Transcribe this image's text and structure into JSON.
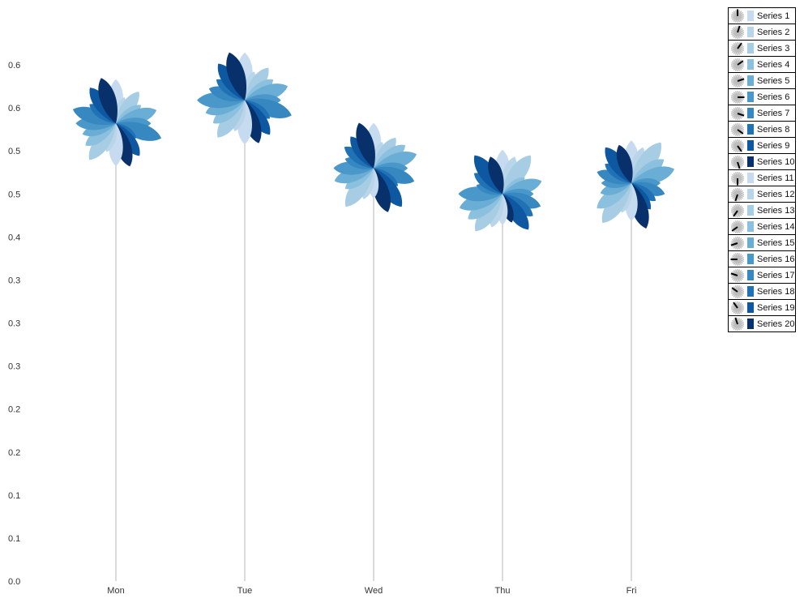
{
  "chart_data": {
    "type": "flower",
    "categories": [
      "Mon",
      "Tue",
      "Wed",
      "Thu",
      "Fri"
    ],
    "y_tick_labels": [
      "0.0",
      "0.1",
      "0.1",
      "0.2",
      "0.2",
      "0.3",
      "0.3",
      "0.3",
      "0.4",
      "0.5",
      "0.5",
      "0.6",
      "0.6"
    ],
    "ylim": [
      0,
      0.65
    ],
    "flower_centers": [
      0.552,
      0.58,
      0.498,
      0.467,
      0.48
    ],
    "series": [
      {
        "name": "Series 1",
        "color": "#c6dbef"
      },
      {
        "name": "Series 2",
        "color": "#b9d5ea"
      },
      {
        "name": "Series 3",
        "color": "#a6cde4"
      },
      {
        "name": "Series 4",
        "color": "#8cc0df"
      },
      {
        "name": "Series 5",
        "color": "#6aaed6"
      },
      {
        "name": "Series 6",
        "color": "#4a98c9"
      },
      {
        "name": "Series 7",
        "color": "#3787c0"
      },
      {
        "name": "Series 8",
        "color": "#2171b5"
      },
      {
        "name": "Series 9",
        "color": "#0d58a1"
      },
      {
        "name": "Series 10",
        "color": "#08306b"
      },
      {
        "name": "Series 11",
        "color": "#c6dbef"
      },
      {
        "name": "Series 12",
        "color": "#b9d5ea"
      },
      {
        "name": "Series 13",
        "color": "#a6cde4"
      },
      {
        "name": "Series 14",
        "color": "#8cc0df"
      },
      {
        "name": "Series 15",
        "color": "#6aaed6"
      },
      {
        "name": "Series 16",
        "color": "#4a98c9"
      },
      {
        "name": "Series 17",
        "color": "#3787c0"
      },
      {
        "name": "Series 18",
        "color": "#2171b5"
      },
      {
        "name": "Series 19",
        "color": "#0d58a1"
      },
      {
        "name": "Series 20",
        "color": "#08306b"
      }
    ],
    "petal_lengths": [
      [
        0.88,
        0.55,
        0.78,
        0.62,
        0.85,
        0.7,
        0.95,
        0.5,
        0.8,
        0.9,
        0.85,
        0.6,
        0.9,
        0.75,
        0.7,
        0.8,
        0.9,
        0.65,
        0.88,
        0.95
      ],
      [
        0.95,
        0.6,
        0.8,
        0.7,
        0.9,
        0.72,
        0.98,
        0.62,
        0.85,
        0.9,
        0.88,
        0.65,
        0.92,
        0.78,
        0.82,
        0.95,
        0.75,
        0.7,
        0.9,
        1.0
      ],
      [
        0.9,
        0.55,
        0.75,
        0.78,
        0.9,
        0.68,
        0.85,
        0.6,
        0.95,
        0.92,
        0.6,
        0.65,
        0.95,
        0.7,
        0.82,
        0.8,
        0.6,
        0.72,
        0.78,
        0.95
      ],
      [
        0.88,
        0.78,
        0.95,
        0.55,
        0.82,
        0.62,
        0.8,
        0.75,
        0.88,
        0.6,
        0.62,
        0.7,
        0.92,
        0.85,
        0.9,
        0.88,
        0.55,
        0.7,
        0.95,
        0.78
      ],
      [
        0.85,
        0.75,
        1.0,
        0.8,
        0.9,
        0.58,
        0.7,
        0.6,
        0.65,
        0.95,
        0.75,
        0.62,
        0.98,
        0.85,
        0.65,
        0.6,
        0.72,
        0.65,
        0.88,
        0.8
      ]
    ],
    "legend_position": "top-right"
  }
}
